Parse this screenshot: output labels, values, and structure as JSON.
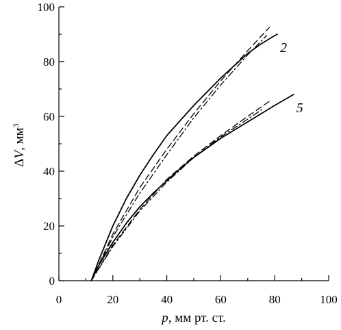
{
  "chart_data": {
    "type": "line",
    "xlabel": "p, мм рт. ст.",
    "xlabel_italic_part": "p",
    "xlabel_rest": ", мм рт. ст.",
    "ylabel_delta": "Δ",
    "ylabel_var": "V",
    "ylabel_unit": ", мм",
    "ylabel_sup": "3",
    "xlim": [
      0,
      100
    ],
    "ylim": [
      0,
      100
    ],
    "xticks": [
      0,
      20,
      40,
      60,
      80,
      100
    ],
    "yticks": [
      0,
      20,
      40,
      60,
      80,
      100
    ],
    "grid": false,
    "series": [
      {
        "label": "2",
        "style": "solid",
        "x": [
          12,
          15,
          20,
          25,
          30,
          35,
          40,
          45,
          50,
          55,
          60,
          65,
          70,
          75,
          80,
          81
        ],
        "y": [
          0,
          8,
          20,
          30,
          38.5,
          46,
          53,
          58.5,
          64,
          69,
          74,
          78.5,
          83,
          86.5,
          89.5,
          90
        ]
      },
      {
        "label": "",
        "style": "dash",
        "x": [
          12,
          20,
          30,
          40,
          50,
          60,
          70,
          78
        ],
        "y": [
          0,
          17,
          34,
          48,
          61,
          73,
          84,
          92.5
        ]
      },
      {
        "label": "",
        "style": "dashdot",
        "x": [
          12,
          20,
          30,
          40,
          50,
          60,
          70,
          77
        ],
        "y": [
          0,
          16,
          32,
          46,
          59.5,
          71.5,
          82.5,
          89.5
        ]
      },
      {
        "label": "5",
        "style": "solid",
        "x": [
          12,
          15,
          20,
          25,
          30,
          35,
          40,
          45,
          50,
          55,
          60,
          65,
          70,
          75,
          80,
          87
        ],
        "y": [
          0,
          6,
          14,
          21,
          27,
          32,
          36.5,
          41,
          45,
          48.5,
          52,
          55,
          58,
          61,
          64,
          68
        ]
      },
      {
        "label": "",
        "style": "dash",
        "x": [
          12,
          20,
          30,
          40,
          50,
          60,
          70,
          78
        ],
        "y": [
          0,
          13,
          26,
          37,
          45.5,
          53,
          60,
          65.5
        ]
      },
      {
        "label": "",
        "style": "dashdot",
        "x": [
          12,
          20,
          30,
          40,
          50,
          60,
          70,
          76
        ],
        "y": [
          0,
          12.5,
          25.5,
          36,
          45,
          52.5,
          59,
          63
        ]
      }
    ]
  }
}
